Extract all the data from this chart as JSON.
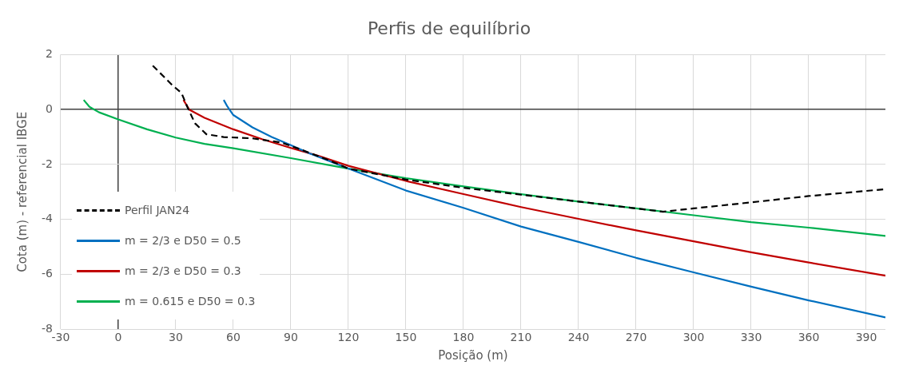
{
  "chart_data": {
    "type": "line",
    "title": "Perfis de equilíbrio",
    "xlabel": "Posição (m)",
    "ylabel": "Cota (m) - referencial IBGE",
    "xlim": [
      -30,
      400
    ],
    "xticks": [
      -30,
      0,
      30,
      60,
      90,
      120,
      150,
      180,
      210,
      240,
      270,
      300,
      330,
      360,
      390
    ],
    "ylim": [
      -8,
      2
    ],
    "yticks": [
      -8,
      -6,
      -4,
      -2,
      0,
      2
    ],
    "grid": true,
    "legend": "left",
    "marker": "none",
    "series": [
      {
        "name": "Perfil JAN24",
        "color": "#000000",
        "line_style": "dashed",
        "x": [
          18,
          28,
          33,
          36,
          40,
          46,
          55,
          70,
          85,
          95,
          110,
          120,
          150,
          180,
          210,
          240,
          270,
          284,
          300,
          330,
          360,
          400
        ],
        "values": [
          1.6,
          0.9,
          0.6,
          0.1,
          -0.5,
          -0.9,
          -1.0,
          -1.05,
          -1.2,
          -1.45,
          -1.85,
          -2.15,
          -2.55,
          -2.85,
          -3.1,
          -3.35,
          -3.6,
          -3.72,
          -3.6,
          -3.38,
          -3.15,
          -2.9
        ]
      },
      {
        "name": "m = 2/3 e D50 = 0.5",
        "color": "#0070c0",
        "line_style": "solid",
        "x": [
          55,
          57,
          60,
          70,
          80,
          90,
          100,
          120,
          150,
          180,
          210,
          240,
          270,
          300,
          330,
          360,
          400
        ],
        "values": [
          0.35,
          0.1,
          -0.2,
          -0.65,
          -1.0,
          -1.3,
          -1.6,
          -2.15,
          -2.95,
          -3.58,
          -4.26,
          -4.82,
          -5.4,
          -5.93,
          -6.45,
          -6.95,
          -7.57
        ]
      },
      {
        "name": "m = 2/3 e D50 = 0.3",
        "color": "#c00000",
        "line_style": "solid",
        "x": [
          34,
          37,
          45,
          60,
          75,
          90,
          105,
          120,
          150,
          180,
          210,
          240,
          270,
          300,
          330,
          360,
          400
        ],
        "values": [
          0.35,
          0,
          -0.3,
          -0.72,
          -1.08,
          -1.4,
          -1.7,
          -2.05,
          -2.6,
          -3.08,
          -3.55,
          -3.98,
          -4.4,
          -4.8,
          -5.2,
          -5.57,
          -6.05
        ]
      },
      {
        "name": "m = 0.615 e D50 = 0.3",
        "color": "#00b050",
        "line_style": "solid",
        "x": [
          -18,
          -15,
          -10,
          0,
          15,
          30,
          45,
          60,
          90,
          120,
          150,
          180,
          210,
          240,
          270,
          300,
          330,
          360,
          400
        ],
        "values": [
          0.35,
          0.1,
          -0.1,
          -0.36,
          -0.72,
          -1.02,
          -1.25,
          -1.41,
          -1.77,
          -2.15,
          -2.5,
          -2.8,
          -3.08,
          -3.35,
          -3.6,
          -3.85,
          -4.1,
          -4.3,
          -4.6
        ]
      }
    ]
  }
}
